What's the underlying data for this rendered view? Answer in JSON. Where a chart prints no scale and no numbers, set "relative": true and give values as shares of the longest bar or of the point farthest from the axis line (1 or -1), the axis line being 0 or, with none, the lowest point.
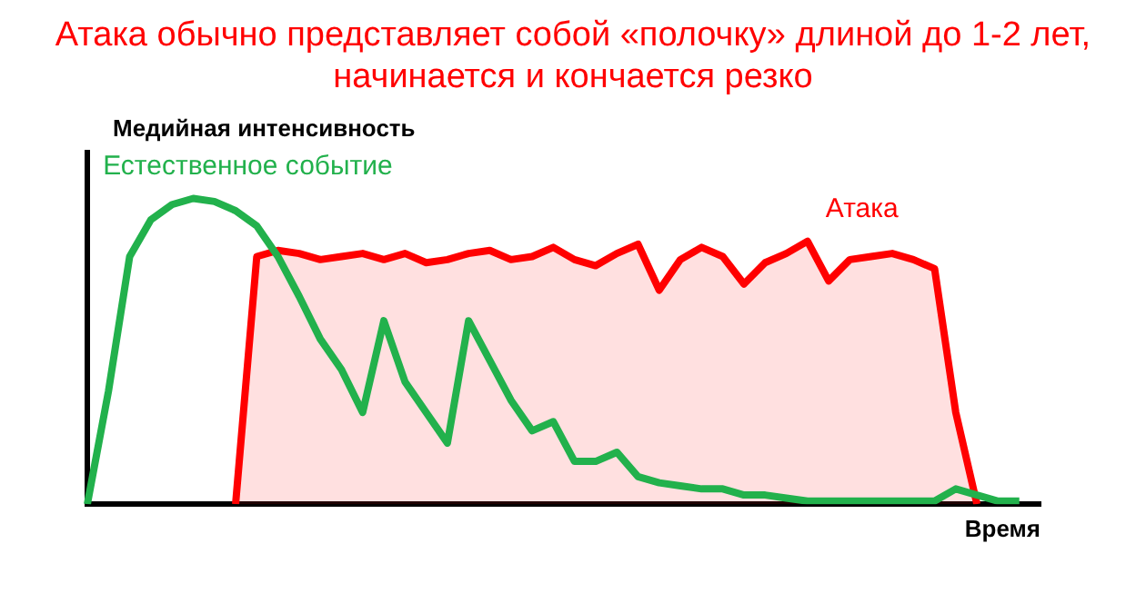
{
  "chart_data": {
    "type": "line",
    "title": "Атака обычно представляет собой «полочку» длиной до 1-2 лет, начинается и кончается резко",
    "xlabel": "Время",
    "ylabel": "Медийная интенсивность",
    "relative": true,
    "grid": false,
    "legend": false,
    "marker": "none",
    "categories": [
      null,
      null,
      null,
      null,
      null,
      null,
      null,
      null,
      null,
      null,
      null,
      null,
      null,
      null,
      null,
      null,
      null,
      null,
      null,
      null,
      null,
      null,
      null,
      null,
      null,
      null,
      null,
      null,
      null,
      null,
      null,
      null,
      null,
      null,
      null,
      null,
      null,
      null,
      null,
      null,
      null,
      null,
      null,
      null,
      null,
      null
    ],
    "series": [
      {
        "name": "Естественное событие",
        "color": "#22b14c",
        "values": [
          0,
          0.37,
          0.81,
          0.93,
          0.98,
          1,
          0.99,
          0.96,
          0.91,
          0.81,
          0.68,
          0.54,
          0.44,
          0.3,
          0.6,
          0.4,
          0.3,
          0.2,
          0.6,
          0.47,
          0.34,
          0.24,
          0.27,
          0.14,
          0.14,
          0.17,
          0.09,
          0.07,
          0.06,
          0.05,
          0.05,
          0.03,
          0.03,
          0.02,
          0.01,
          0.01,
          0.01,
          0.01,
          0.01,
          0.01,
          0.01,
          0.05,
          0.03,
          0.01,
          0.01,
          null
        ]
      },
      {
        "name": "Атака",
        "type": "area",
        "color": "#ff0000",
        "values": [
          null,
          null,
          null,
          null,
          null,
          null,
          null,
          0,
          0.81,
          0.83,
          0.82,
          0.8,
          0.81,
          0.82,
          0.8,
          0.82,
          0.79,
          0.8,
          0.82,
          0.83,
          0.8,
          0.81,
          0.84,
          0.8,
          0.78,
          0.82,
          0.85,
          0.7,
          0.8,
          0.84,
          0.81,
          0.72,
          0.79,
          0.82,
          0.86,
          0.73,
          0.8,
          0.81,
          0.82,
          0.8,
          0.77,
          0.3,
          0,
          null,
          null,
          null
        ]
      }
    ]
  }
}
